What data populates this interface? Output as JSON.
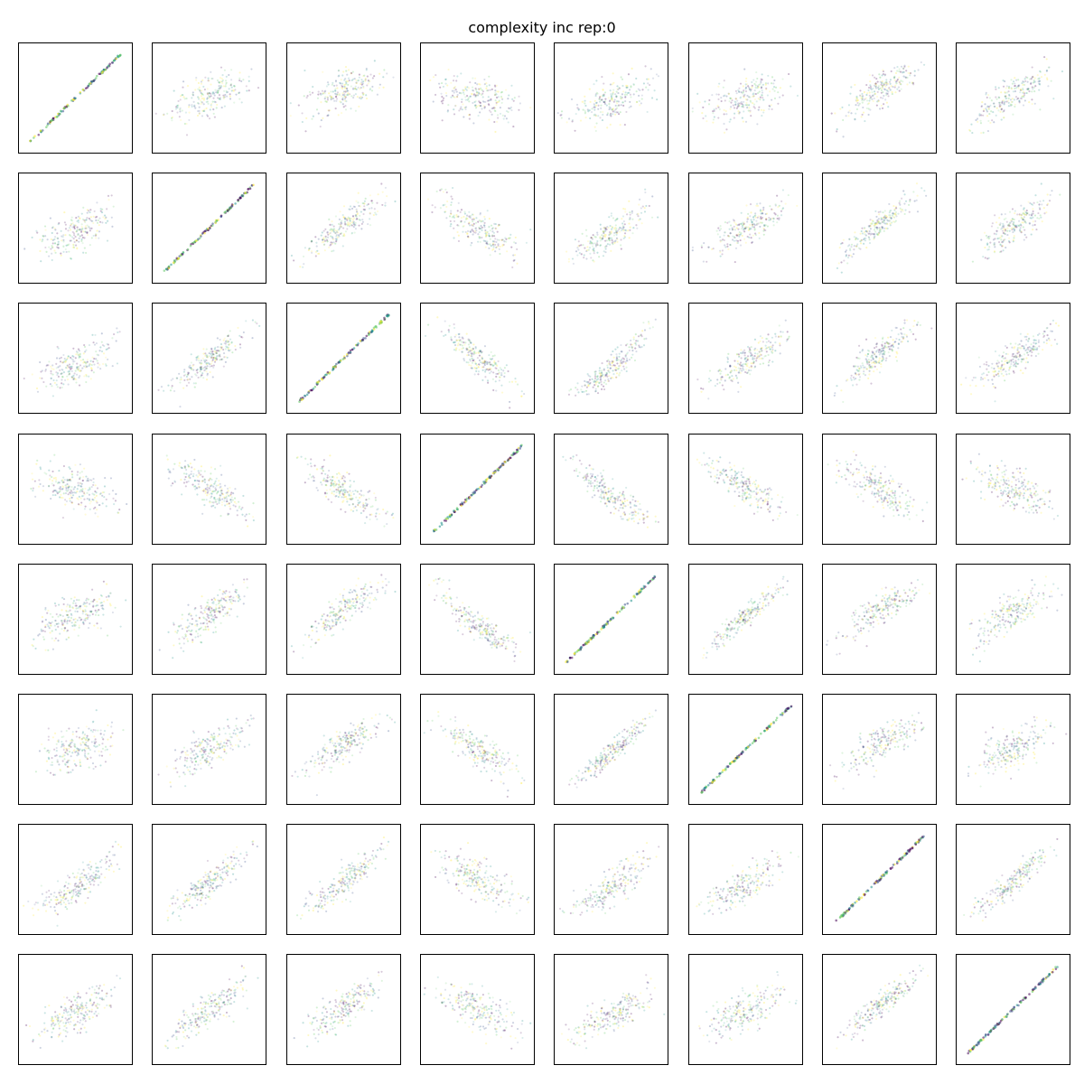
{
  "title": "complexity inc rep:0",
  "chart_data": {
    "type": "scatter",
    "title": "complexity inc rep:0",
    "xlabel": "",
    "ylabel": "",
    "rows": 8,
    "cols": 8,
    "axes_ticks_visible": false,
    "grid": false,
    "point_alpha": 0.15,
    "colormap": [
      "#440154",
      "#3b528b",
      "#21918c",
      "#5ec962",
      "#fde725"
    ],
    "panels": [
      {
        "r": 0,
        "c": 0,
        "corr": 1.0,
        "curv": 0.0,
        "spread": 0.0
      },
      {
        "r": 0,
        "c": 1,
        "corr": 0.6,
        "curv": 0.1,
        "spread": 0.5
      },
      {
        "r": 0,
        "c": 2,
        "corr": 0.6,
        "curv": 0.25,
        "spread": 0.5
      },
      {
        "r": 0,
        "c": 3,
        "corr": -0.45,
        "curv": 0.0,
        "spread": 0.6
      },
      {
        "r": 0,
        "c": 4,
        "corr": 0.55,
        "curv": -0.1,
        "spread": 0.5
      },
      {
        "r": 0,
        "c": 5,
        "corr": 0.5,
        "curv": 0.0,
        "spread": 0.55
      },
      {
        "r": 0,
        "c": 6,
        "corr": 0.75,
        "curv": 0.35,
        "spread": 0.35
      },
      {
        "r": 0,
        "c": 7,
        "corr": 0.7,
        "curv": 0.15,
        "spread": 0.4
      },
      {
        "r": 1,
        "c": 0,
        "corr": 0.6,
        "curv": -0.2,
        "spread": 0.45
      },
      {
        "r": 1,
        "c": 1,
        "corr": 1.0,
        "curv": 0.0,
        "spread": 0.0
      },
      {
        "r": 1,
        "c": 2,
        "corr": 0.85,
        "curv": 0.1,
        "spread": 0.3
      },
      {
        "r": 1,
        "c": 3,
        "corr": -0.75,
        "curv": 0.0,
        "spread": 0.4
      },
      {
        "r": 1,
        "c": 4,
        "corr": 0.75,
        "curv": -0.3,
        "spread": 0.35
      },
      {
        "r": 1,
        "c": 5,
        "corr": 0.7,
        "curv": 0.0,
        "spread": 0.4
      },
      {
        "r": 1,
        "c": 6,
        "corr": 0.85,
        "curv": 0.15,
        "spread": 0.25
      },
      {
        "r": 1,
        "c": 7,
        "corr": 0.8,
        "curv": 0.05,
        "spread": 0.35
      },
      {
        "r": 2,
        "c": 0,
        "corr": 0.6,
        "curv": -0.35,
        "spread": 0.45
      },
      {
        "r": 2,
        "c": 1,
        "corr": 0.85,
        "curv": -0.1,
        "spread": 0.3
      },
      {
        "r": 2,
        "c": 2,
        "corr": 1.0,
        "curv": 0.0,
        "spread": 0.0
      },
      {
        "r": 2,
        "c": 3,
        "corr": -0.85,
        "curv": 0.0,
        "spread": 0.3
      },
      {
        "r": 2,
        "c": 4,
        "corr": 0.9,
        "curv": -0.45,
        "spread": 0.25
      },
      {
        "r": 2,
        "c": 5,
        "corr": 0.75,
        "curv": -0.15,
        "spread": 0.35
      },
      {
        "r": 2,
        "c": 6,
        "corr": 0.85,
        "curv": 0.15,
        "spread": 0.3
      },
      {
        "r": 2,
        "c": 7,
        "corr": 0.75,
        "curv": 0.0,
        "spread": 0.35
      },
      {
        "r": 3,
        "c": 0,
        "corr": -0.5,
        "curv": 0.0,
        "spread": 0.55
      },
      {
        "r": 3,
        "c": 1,
        "corr": -0.7,
        "curv": 0.0,
        "spread": 0.4
      },
      {
        "r": 3,
        "c": 2,
        "corr": -0.75,
        "curv": 0.1,
        "spread": 0.35
      },
      {
        "r": 3,
        "c": 3,
        "corr": 1.0,
        "curv": 0.0,
        "spread": 0.0
      },
      {
        "r": 3,
        "c": 4,
        "corr": -0.8,
        "curv": 0.3,
        "spread": 0.3
      },
      {
        "r": 3,
        "c": 5,
        "corr": -0.75,
        "curv": 0.0,
        "spread": 0.35
      },
      {
        "r": 3,
        "c": 6,
        "corr": -0.7,
        "curv": 0.0,
        "spread": 0.4
      },
      {
        "r": 3,
        "c": 7,
        "corr": -0.6,
        "curv": 0.0,
        "spread": 0.45
      },
      {
        "r": 4,
        "c": 0,
        "corr": 0.55,
        "curv": 0.2,
        "spread": 0.5
      },
      {
        "r": 4,
        "c": 1,
        "corr": 0.8,
        "curv": 0.2,
        "spread": 0.35
      },
      {
        "r": 4,
        "c": 2,
        "corr": 0.85,
        "curv": 0.45,
        "spread": 0.3
      },
      {
        "r": 4,
        "c": 3,
        "corr": -0.85,
        "curv": 0.25,
        "spread": 0.3
      },
      {
        "r": 4,
        "c": 4,
        "corr": 1.0,
        "curv": 0.0,
        "spread": 0.0
      },
      {
        "r": 4,
        "c": 5,
        "corr": 0.9,
        "curv": 0.1,
        "spread": 0.2
      },
      {
        "r": 4,
        "c": 6,
        "corr": 0.75,
        "curv": 0.4,
        "spread": 0.35
      },
      {
        "r": 4,
        "c": 7,
        "corr": 0.7,
        "curv": 0.3,
        "spread": 0.4
      },
      {
        "r": 5,
        "c": 0,
        "corr": 0.5,
        "curv": 0.0,
        "spread": 0.55
      },
      {
        "r": 5,
        "c": 1,
        "corr": 0.7,
        "curv": 0.0,
        "spread": 0.4
      },
      {
        "r": 5,
        "c": 2,
        "corr": 0.75,
        "curv": 0.2,
        "spread": 0.35
      },
      {
        "r": 5,
        "c": 3,
        "corr": -0.75,
        "curv": 0.0,
        "spread": 0.35
      },
      {
        "r": 5,
        "c": 4,
        "corr": 0.9,
        "curv": -0.15,
        "spread": 0.2
      },
      {
        "r": 5,
        "c": 5,
        "corr": 1.0,
        "curv": 0.0,
        "spread": 0.0
      },
      {
        "r": 5,
        "c": 6,
        "corr": 0.7,
        "curv": 0.25,
        "spread": 0.4
      },
      {
        "r": 5,
        "c": 7,
        "corr": 0.6,
        "curv": 0.0,
        "spread": 0.45
      },
      {
        "r": 6,
        "c": 0,
        "corr": 0.75,
        "curv": -0.35,
        "spread": 0.35
      },
      {
        "r": 6,
        "c": 1,
        "corr": 0.85,
        "curv": -0.15,
        "spread": 0.3
      },
      {
        "r": 6,
        "c": 2,
        "corr": 0.85,
        "curv": -0.1,
        "spread": 0.3
      },
      {
        "r": 6,
        "c": 3,
        "corr": -0.65,
        "curv": 0.0,
        "spread": 0.45
      },
      {
        "r": 6,
        "c": 4,
        "corr": 0.8,
        "curv": -0.35,
        "spread": 0.35
      },
      {
        "r": 6,
        "c": 5,
        "corr": 0.7,
        "curv": -0.2,
        "spread": 0.4
      },
      {
        "r": 6,
        "c": 6,
        "corr": 1.0,
        "curv": 0.0,
        "spread": 0.0
      },
      {
        "r": 6,
        "c": 7,
        "corr": 0.9,
        "curv": -0.1,
        "spread": 0.25
      },
      {
        "r": 7,
        "c": 0,
        "corr": 0.7,
        "curv": -0.15,
        "spread": 0.4
      },
      {
        "r": 7,
        "c": 1,
        "corr": 0.8,
        "curv": 0.0,
        "spread": 0.35
      },
      {
        "r": 7,
        "c": 2,
        "corr": 0.75,
        "curv": 0.05,
        "spread": 0.35
      },
      {
        "r": 7,
        "c": 3,
        "corr": -0.65,
        "curv": 0.0,
        "spread": 0.45
      },
      {
        "r": 7,
        "c": 4,
        "corr": 0.65,
        "curv": -0.3,
        "spread": 0.4
      },
      {
        "r": 7,
        "c": 5,
        "corr": 0.65,
        "curv": -0.1,
        "spread": 0.45
      },
      {
        "r": 7,
        "c": 6,
        "corr": 0.9,
        "curv": 0.15,
        "spread": 0.25
      },
      {
        "r": 7,
        "c": 7,
        "corr": 1.0,
        "curv": 0.0,
        "spread": 0.0
      }
    ]
  }
}
